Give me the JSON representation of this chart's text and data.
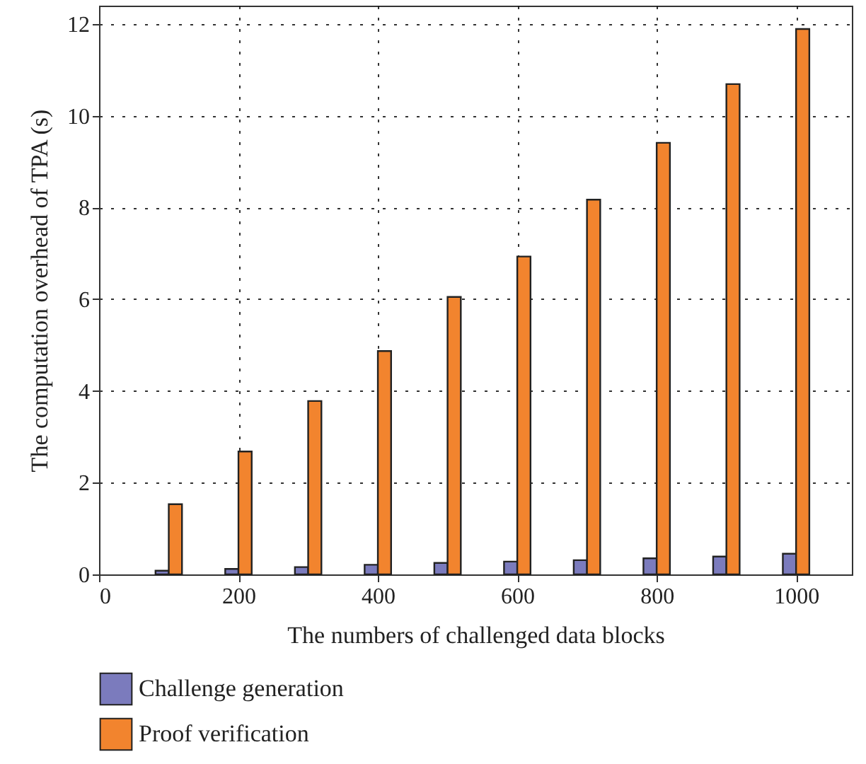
{
  "chart_data": {
    "type": "bar",
    "xlabel": "The numbers of challenged data blocks",
    "ylabel": "The computation overhead of TPA (s)",
    "x": [
      100,
      200,
      300,
      400,
      500,
      600,
      700,
      800,
      900,
      1000
    ],
    "series": [
      {
        "name": "Challenge generation",
        "color": "#7b7bbd",
        "values": [
          0.08,
          0.12,
          0.16,
          0.21,
          0.25,
          0.28,
          0.31,
          0.35,
          0.39,
          0.45
        ]
      },
      {
        "name": "Proof verification",
        "color": "#f2842e",
        "values": [
          1.53,
          2.68,
          3.78,
          4.87,
          6.05,
          6.93,
          8.17,
          9.41,
          10.69,
          11.89
        ]
      }
    ],
    "xlim": [
      0,
      1080
    ],
    "xticks": [
      0,
      200,
      400,
      600,
      800,
      1000
    ],
    "ylim": [
      0,
      12.4
    ],
    "yticks": [
      0,
      2,
      4,
      6,
      8,
      10,
      12
    ],
    "grid": true,
    "legend": "bottom left"
  }
}
